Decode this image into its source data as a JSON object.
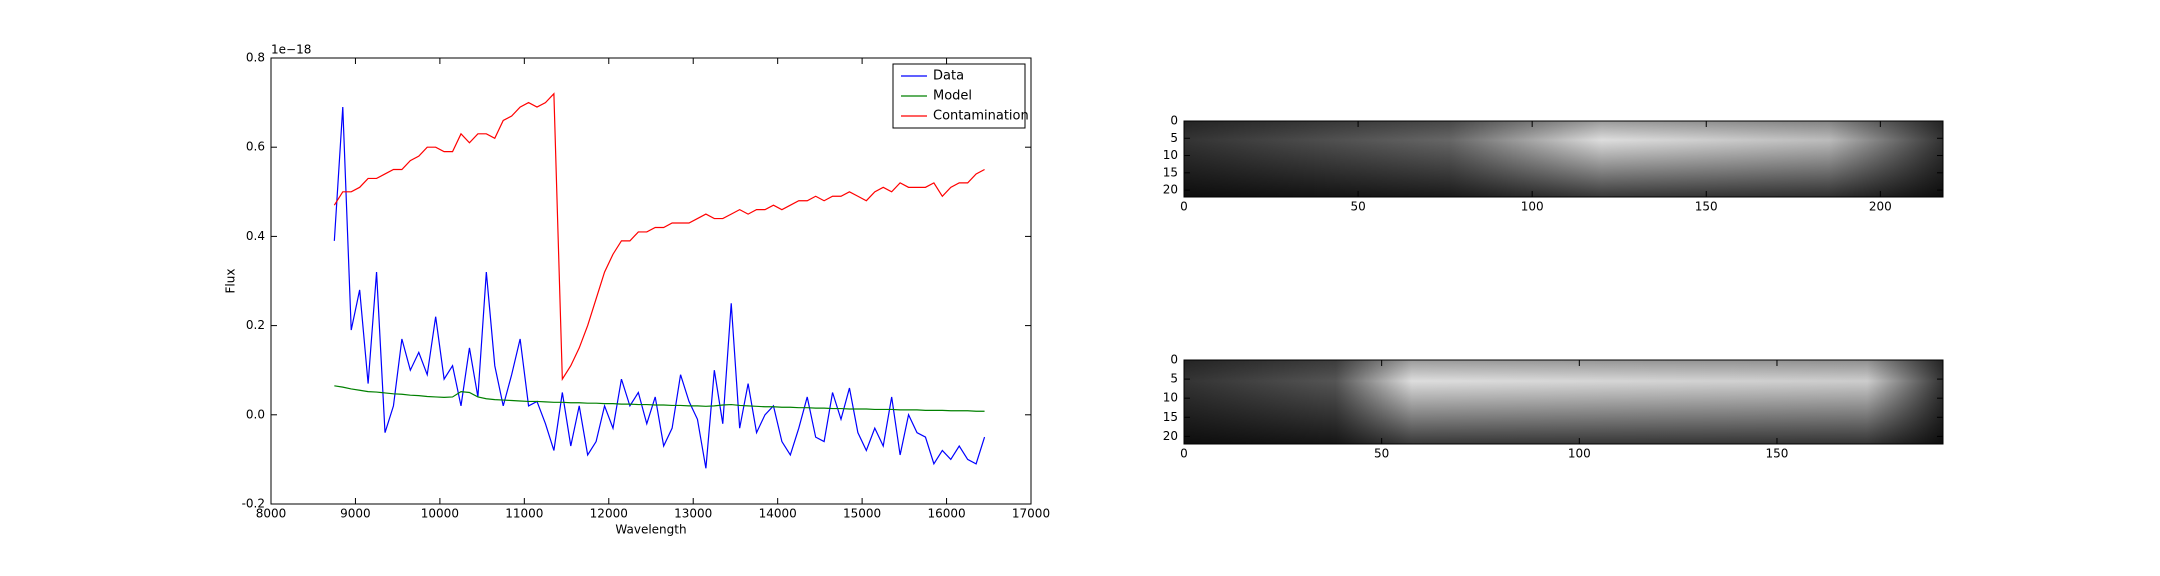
{
  "chart_data": [
    {
      "type": "line",
      "xlabel": "Wavelength",
      "ylabel": "Flux",
      "offset_text": "1e−18",
      "x": [
        8750,
        8850,
        8950,
        9050,
        9150,
        9250,
        9350,
        9450,
        9550,
        9650,
        9750,
        9850,
        9950,
        10050,
        10150,
        10250,
        10350,
        10450,
        10550,
        10650,
        10750,
        10850,
        10950,
        11050,
        11150,
        11250,
        11350,
        11450,
        11550,
        11650,
        11750,
        11850,
        11950,
        12050,
        12150,
        12250,
        12350,
        12450,
        12550,
        12650,
        12750,
        12850,
        12950,
        13050,
        13150,
        13250,
        13350,
        13450,
        13550,
        13650,
        13750,
        13850,
        13950,
        14050,
        14150,
        14250,
        14350,
        14450,
        14550,
        14650,
        14750,
        14850,
        14950,
        15050,
        15150,
        15250,
        15350,
        15450,
        15550,
        15650,
        15750,
        15850,
        15950,
        16050,
        16150,
        16250,
        16350,
        16450
      ],
      "series": [
        {
          "name": "Data",
          "color": "#0000ff",
          "values": [
            0.39,
            0.69,
            0.19,
            0.28,
            0.07,
            0.32,
            -0.04,
            0.02,
            0.17,
            0.1,
            0.14,
            0.09,
            0.22,
            0.08,
            0.11,
            0.02,
            0.15,
            0.04,
            0.32,
            0.11,
            0.02,
            0.09,
            0.17,
            0.02,
            0.03,
            -0.02,
            -0.08,
            0.05,
            -0.07,
            0.02,
            -0.09,
            -0.06,
            0.02,
            -0.03,
            0.08,
            0.02,
            0.05,
            -0.02,
            0.04,
            -0.07,
            -0.03,
            0.09,
            0.03,
            -0.01,
            -0.12,
            0.1,
            -0.02,
            0.25,
            -0.03,
            0.07,
            -0.04,
            0.0,
            0.02,
            -0.06,
            -0.09,
            -0.03,
            0.04,
            -0.05,
            -0.06,
            0.05,
            -0.01,
            0.06,
            -0.04,
            -0.08,
            -0.03,
            -0.07,
            0.04,
            -0.09,
            0.0,
            -0.04,
            -0.05,
            -0.11,
            -0.08,
            -0.1,
            -0.07,
            -0.1,
            -0.11,
            -0.05
          ]
        },
        {
          "name": "Model",
          "color": "#008000",
          "values": [
            0.065,
            0.062,
            0.058,
            0.055,
            0.052,
            0.051,
            0.049,
            0.047,
            0.046,
            0.044,
            0.043,
            0.041,
            0.04,
            0.039,
            0.04,
            0.052,
            0.05,
            0.04,
            0.036,
            0.034,
            0.033,
            0.032,
            0.031,
            0.03,
            0.03,
            0.029,
            0.028,
            0.028,
            0.027,
            0.027,
            0.026,
            0.026,
            0.025,
            0.025,
            0.024,
            0.024,
            0.023,
            0.023,
            0.022,
            0.022,
            0.021,
            0.021,
            0.02,
            0.02,
            0.019,
            0.02,
            0.022,
            0.023,
            0.021,
            0.02,
            0.019,
            0.018,
            0.018,
            0.017,
            0.017,
            0.016,
            0.016,
            0.015,
            0.015,
            0.014,
            0.014,
            0.013,
            0.013,
            0.013,
            0.012,
            0.012,
            0.012,
            0.011,
            0.011,
            0.011,
            0.01,
            0.01,
            0.01,
            0.009,
            0.009,
            0.009,
            0.008,
            0.008
          ]
        },
        {
          "name": "Contamination",
          "color": "#ff0000",
          "values": [
            0.47,
            0.5,
            0.5,
            0.51,
            0.53,
            0.53,
            0.54,
            0.55,
            0.55,
            0.57,
            0.58,
            0.6,
            0.6,
            0.59,
            0.59,
            0.63,
            0.61,
            0.63,
            0.63,
            0.62,
            0.66,
            0.67,
            0.69,
            0.7,
            0.69,
            0.7,
            0.72,
            0.08,
            0.11,
            0.15,
            0.2,
            0.26,
            0.32,
            0.36,
            0.39,
            0.39,
            0.41,
            0.41,
            0.42,
            0.42,
            0.43,
            0.43,
            0.43,
            0.44,
            0.45,
            0.44,
            0.44,
            0.45,
            0.46,
            0.45,
            0.46,
            0.46,
            0.47,
            0.46,
            0.47,
            0.48,
            0.48,
            0.49,
            0.48,
            0.49,
            0.49,
            0.5,
            0.49,
            0.48,
            0.5,
            0.51,
            0.5,
            0.52,
            0.51,
            0.51,
            0.51,
            0.52,
            0.49,
            0.51,
            0.52,
            0.52,
            0.54,
            0.55
          ]
        }
      ],
      "xlim": [
        8000,
        17000
      ],
      "xticks": [
        8000,
        9000,
        10000,
        11000,
        12000,
        13000,
        14000,
        15000,
        16000,
        17000
      ],
      "ylim": [
        -0.2,
        0.8
      ],
      "yticks": [
        -0.2,
        {
          "value": 0,
          "label": "0.0"
        },
        0.2,
        0.4,
        0.6,
        0.8
      ],
      "legend": "upper right"
    },
    {
      "type": "image",
      "xlim": [
        0,
        218
      ],
      "xticks": [
        0,
        50,
        100,
        150,
        200
      ],
      "ylim": [
        22,
        0
      ],
      "yticks": [
        0,
        5,
        10,
        15,
        20
      ]
    },
    {
      "type": "image",
      "xlim": [
        0,
        192
      ],
      "xticks": [
        0,
        50,
        100,
        150
      ],
      "ylim": [
        22,
        0
      ],
      "yticks": [
        0,
        5,
        10,
        15,
        20
      ]
    }
  ]
}
